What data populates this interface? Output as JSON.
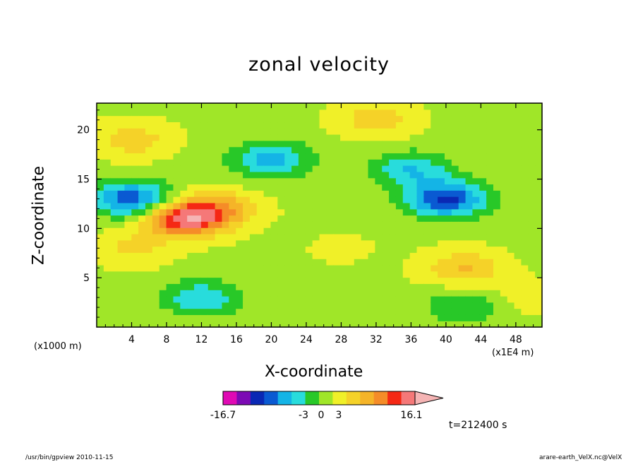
{
  "chart_data": {
    "type": "heatmap",
    "title": "zonal velocity",
    "xlabel": "X-coordinate",
    "ylabel": "Z-coordinate",
    "x_unit": "(x1000 m)",
    "x_scale": "(x1E4 m)",
    "x_ticks": [
      4,
      8,
      12,
      16,
      20,
      24,
      28,
      32,
      36,
      40,
      44,
      48
    ],
    "y_ticks": [
      5,
      10,
      15,
      20
    ],
    "xlim": [
      0,
      51
    ],
    "ylim": [
      0,
      22.7
    ],
    "colorbar": {
      "labels": [
        "-16.7",
        "-3",
        "0",
        "3",
        "16.1"
      ],
      "min": -16.7,
      "max": 16.1,
      "colors": [
        "#e00ab4",
        "#7c0ab4",
        "#0a28b4",
        "#0a5ad2",
        "#14b4e6",
        "#28dcdc",
        "#28c828",
        "#a0e628",
        "#f0f028",
        "#f5d228",
        "#f5b428",
        "#f58c28",
        "#f52814",
        "#f57878",
        "#f5b4b4"
      ]
    },
    "time_label": "t=212400 s",
    "features": [
      {
        "x": 4,
        "z": 13,
        "u": -10
      },
      {
        "x": 10,
        "z": 11,
        "u": 12
      },
      {
        "x": 14,
        "z": 12,
        "u": 6
      },
      {
        "x": 40,
        "z": 13,
        "u": -11
      },
      {
        "x": 36,
        "z": 16,
        "u": -6
      },
      {
        "x": 20,
        "z": 17,
        "u": -7
      },
      {
        "x": 28,
        "z": 8,
        "u": 1
      },
      {
        "x": 42,
        "z": 6,
        "u": 5
      },
      {
        "x": 12,
        "z": 3,
        "u": -6
      },
      {
        "x": 4,
        "z": 8,
        "u": 3
      },
      {
        "x": 4,
        "z": 19,
        "u": 4
      },
      {
        "x": 32,
        "z": 21,
        "u": 4
      },
      {
        "x": 50,
        "z": 3,
        "u": 2
      },
      {
        "x": 42,
        "z": 2,
        "u": -4
      }
    ]
  },
  "footer": {
    "left": "/usr/bin/gpview   2010-11-15",
    "right": "arare-earth_VelX.nc@VelX"
  }
}
